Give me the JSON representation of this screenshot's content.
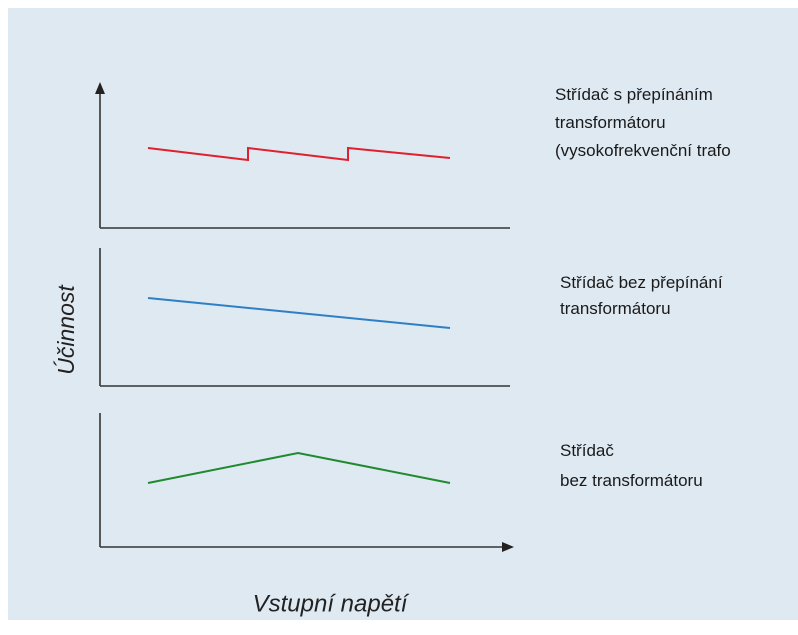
{
  "diagram": {
    "y_axis_label": "Účinnost",
    "x_axis_label": "Vstupní napětí",
    "panels": [
      {
        "label_lines": [
          "Střídač s přepínáním",
          "transformátoru",
          "(vysokofrekvenční trafo"
        ]
      },
      {
        "label_lines": [
          "Střídač bez přepínání",
          "transformátoru"
        ]
      },
      {
        "label_lines": [
          "Střídač",
          "bez transformátoru"
        ]
      }
    ]
  }
}
